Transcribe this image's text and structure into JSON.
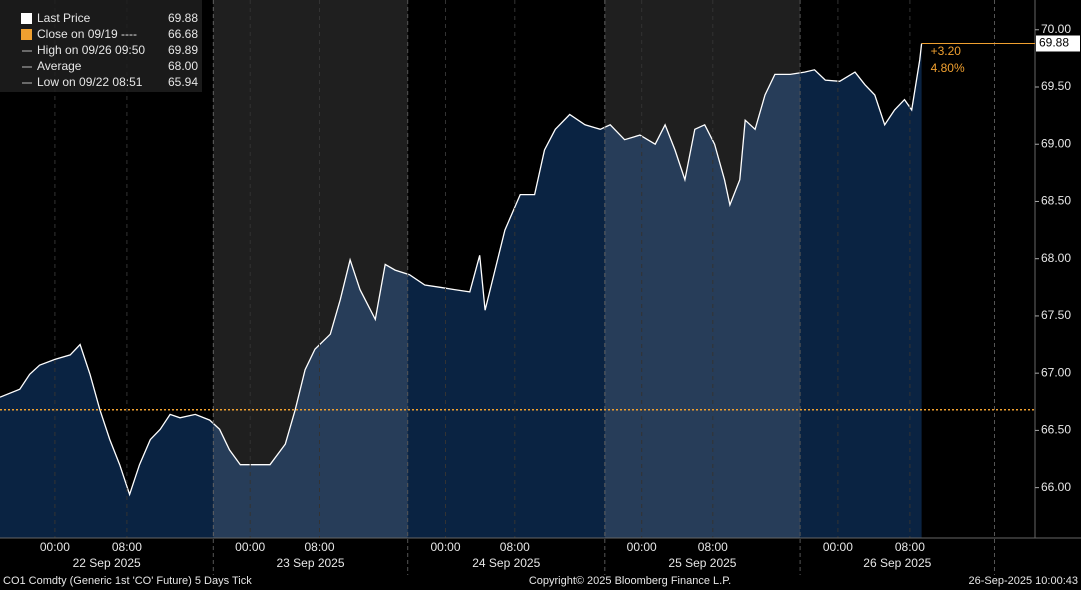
{
  "chart_data": {
    "type": "area",
    "series": [
      {
        "name": "Last Price",
        "color": "#ffffff",
        "x": [
          -6.1,
          -3.9,
          -2.8,
          -1.7,
          0,
          1.7,
          2.8,
          3.9,
          5.0,
          6.1,
          7.2,
          8.3,
          9.4,
          10.6,
          11.7,
          12.8,
          13.9,
          15.6,
          17.2,
          18.3,
          19.4,
          20.6,
          22.2,
          23.9,
          25.6,
          26.7,
          27.8,
          28.9,
          30.6,
          31.7,
          32.8,
          33.9,
          35.6,
          36.7,
          37.8,
          39.4,
          41.1,
          42.8,
          44.4,
          46.1,
          47.2,
          47.8,
          48.9,
          50.0,
          51.7,
          53.3,
          54.4,
          55.6,
          57.2,
          58.9,
          60.6,
          61.7,
          63.3,
          65.0,
          66.7,
          67.8,
          68.9,
          70.0,
          71.1,
          72.2,
          73.3,
          74.4,
          75.0,
          76.1,
          76.7,
          77.8,
          78.9,
          80.0,
          81.7,
          83.3,
          84.4,
          85.6,
          87.2,
          88.9,
          90.0,
          91.1,
          92.2,
          93.3,
          94.4,
          95.2,
          96.1,
          96.3
        ],
        "values": [
          66.79,
          66.86,
          66.99,
          67.07,
          67.12,
          67.16,
          67.25,
          66.99,
          66.68,
          66.42,
          66.2,
          65.94,
          66.2,
          66.42,
          66.51,
          66.64,
          66.61,
          66.64,
          66.59,
          66.51,
          66.33,
          66.2,
          66.2,
          66.2,
          66.38,
          66.68,
          67.03,
          67.21,
          67.34,
          67.64,
          67.99,
          67.73,
          67.47,
          67.95,
          67.9,
          67.86,
          67.77,
          67.75,
          67.73,
          67.71,
          68.03,
          67.55,
          67.9,
          68.25,
          68.56,
          68.56,
          68.95,
          69.13,
          69.26,
          69.17,
          69.13,
          69.17,
          69.04,
          69.08,
          69.0,
          69.17,
          68.95,
          68.69,
          69.13,
          69.17,
          69.0,
          68.69,
          68.47,
          68.69,
          69.21,
          69.13,
          69.43,
          69.61,
          69.61,
          69.63,
          69.65,
          69.56,
          69.55,
          69.63,
          69.52,
          69.43,
          69.17,
          69.3,
          69.39,
          69.3,
          69.74,
          69.88
        ]
      }
    ],
    "legend": [
      {
        "name": "Last Price",
        "value": 69.88,
        "color": "#ffffff"
      },
      {
        "name": "Close on 09/19 ----",
        "value": 66.68,
        "color": "#f0a030"
      },
      {
        "name": "High on 09/26 09:50",
        "value": 69.89,
        "color": "#bbbbbb"
      },
      {
        "name": "Average",
        "value": {
          "value": 68,
          "label": "68.00"
        },
        "color": "#bbbbbb"
      },
      {
        "name": "Low on 09/22 08:51",
        "value": 65.94,
        "color": "#bbbbbb"
      }
    ],
    "close_line": {
      "value": 66.68,
      "color": "#f0a030"
    },
    "last_label": 69.88,
    "change": {
      "value": 3.2,
      "label": "+3.20"
    },
    "change_pct": {
      "value": 4.8,
      "label": "4.80%"
    },
    "xlim": [
      -6.1,
      108.9
    ],
    "ylim": [
      65.56,
      70.26
    ],
    "yticks": [
      {
        "value": 66,
        "label": "66.00"
      },
      {
        "value": 66.5,
        "label": "66.50"
      },
      {
        "value": 67,
        "label": "67.00"
      },
      {
        "value": 67.5,
        "label": "67.50"
      },
      {
        "value": 68,
        "label": "68.00"
      },
      {
        "value": 68.5,
        "label": "68.50"
      },
      {
        "value": 69,
        "label": "69.00"
      },
      {
        "value": 69.5,
        "label": "69.50"
      },
      {
        "value": 70,
        "label": "70.00"
      }
    ],
    "xticks": [
      {
        "value": 0,
        "label": "00:00"
      },
      {
        "value": 8,
        "label": "08:00"
      },
      {
        "value": 21.7,
        "label": "00:00"
      },
      {
        "value": 29.4,
        "label": "08:00"
      },
      {
        "value": 43.4,
        "label": "00:00"
      },
      {
        "value": 51.1,
        "label": "08:00"
      },
      {
        "value": 65.2,
        "label": "00:00"
      },
      {
        "value": 73.1,
        "label": "08:00"
      },
      {
        "value": 87.0,
        "label": "00:00"
      },
      {
        "value": 95.0,
        "label": "08:00"
      }
    ],
    "sessions": [
      {
        "label": "22 Sep 2025",
        "start": -6.1,
        "end": 17.6,
        "shaded": false
      },
      {
        "label": "23 Sep 2025",
        "start": 17.6,
        "end": 39.2,
        "shaded": true
      },
      {
        "label": "24 Sep 2025",
        "start": 39.2,
        "end": 61.1,
        "shaded": false
      },
      {
        "label": "25 Sep 2025",
        "start": 61.1,
        "end": 82.8,
        "shaded": true
      },
      {
        "label": "26 Sep 2025",
        "start": 82.8,
        "end": 104.4,
        "shaded": false
      }
    ],
    "footer": {
      "left": "CO1 Comdty (Generic 1st 'CO' Future) 5 Days  Tick",
      "center": "Copyright© 2025 Bloomberg Finance L.P.",
      "right": "26-Sep-2025 10:00:43"
    }
  }
}
